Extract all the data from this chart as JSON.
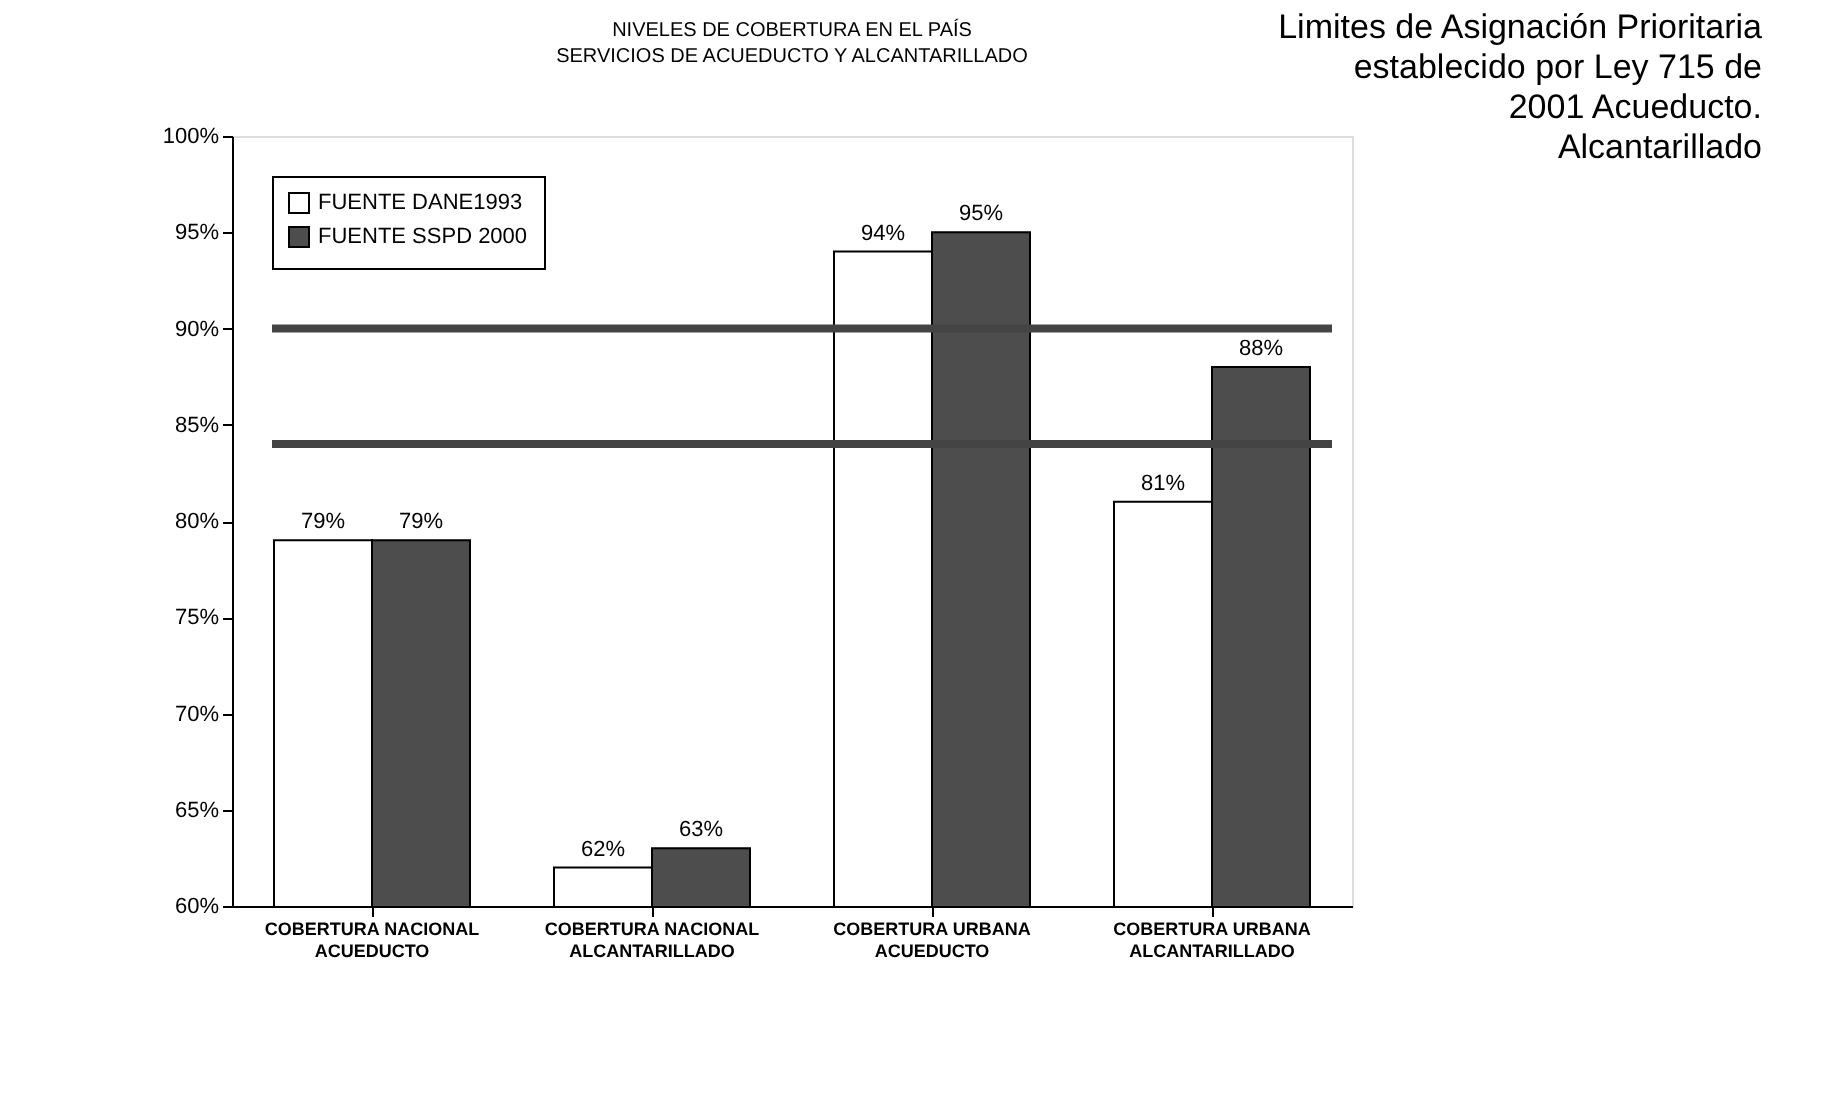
{
  "chart_data": {
    "type": "bar",
    "title": "NIVELES DE COBERTURA EN EL PAÍS",
    "subtitle": "SERVICIOS DE ACUEDUCTO Y ALCANTARILLADO",
    "categories": [
      "COBERTURA NACIONAL ACUEDUCTO",
      "COBERTURA NACIONAL ALCANTARILLADO",
      "COBERTURA URBANA ACUEDUCTO",
      "COBERTURA URBANA ALCANTARILLADO"
    ],
    "series": [
      {
        "name": "FUENTE DANE1993",
        "color": "#ffffff",
        "values": [
          79,
          62,
          94,
          81
        ],
        "value_labels": [
          "79%",
          "62%",
          "94%",
          "81%"
        ]
      },
      {
        "name": "FUENTE SSPD 2000",
        "color": "#4d4d4d",
        "values": [
          79,
          63,
          95,
          88
        ],
        "value_labels": [
          "79%",
          "63%",
          "95%",
          "88%"
        ]
      }
    ],
    "ylim": [
      60,
      100
    ],
    "yticks": [
      {
        "value": 60,
        "label": "60%"
      },
      {
        "value": 65,
        "label": "65%"
      },
      {
        "value": 70,
        "label": "70%"
      },
      {
        "value": 75,
        "label": "75%"
      },
      {
        "value": 80,
        "label": "80%"
      },
      {
        "value": 85,
        "label": "85%"
      },
      {
        "value": 90,
        "label": "90%"
      },
      {
        "value": 95,
        "label": "95%"
      },
      {
        "value": 100,
        "label": "100%"
      }
    ],
    "ref_lines": [
      {
        "axis": "y",
        "value": 90,
        "color": "#444444"
      },
      {
        "axis": "y",
        "value": 84,
        "color": "#444444"
      }
    ],
    "annotations": [
      "Limites de Asignación Prioritaria\nestablecido  por Ley 715 de\n2001 Acueducto.\nAlcantarillado"
    ],
    "legend": "top left",
    "grid": false
  }
}
